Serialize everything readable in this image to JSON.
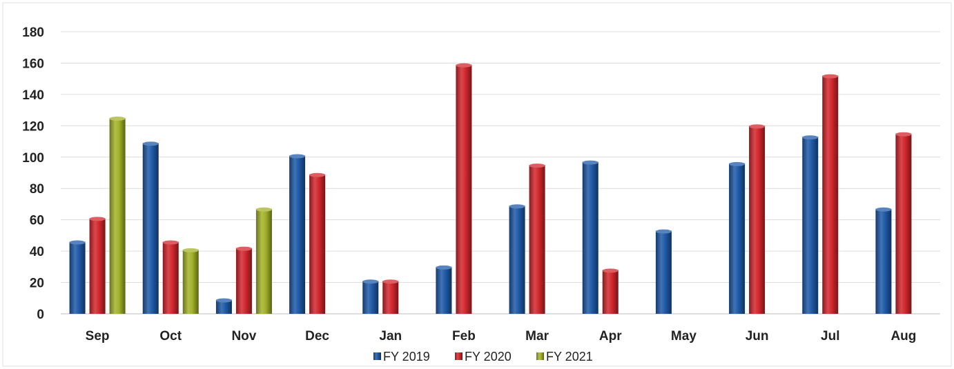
{
  "chart_data": {
    "type": "bar",
    "title": "",
    "xlabel": "",
    "ylabel": "",
    "ylim": [
      0,
      180
    ],
    "yticks": [
      0,
      20,
      40,
      60,
      80,
      100,
      120,
      140,
      160,
      180
    ],
    "grid": true,
    "legend_position": "bottom",
    "categories": [
      "Sep",
      "Oct",
      "Nov",
      "Dec",
      "Jan",
      "Feb",
      "Mar",
      "Apr",
      "May",
      "Jun",
      "Jul",
      "Aug"
    ],
    "series": [
      {
        "name": "FY 2019",
        "color": "#1f5aa8",
        "values": [
          46,
          109,
          9,
          101,
          21,
          30,
          69,
          97,
          53,
          96,
          113,
          67
        ]
      },
      {
        "name": "FY 2020",
        "color": "#d2282d",
        "values": [
          61,
          46,
          42,
          89,
          21,
          159,
          95,
          28,
          null,
          120,
          152,
          115
        ]
      },
      {
        "name": "FY 2021",
        "color": "#a3b22a",
        "values": [
          125,
          41,
          67,
          null,
          null,
          null,
          null,
          null,
          null,
          null,
          null,
          null
        ]
      }
    ]
  }
}
